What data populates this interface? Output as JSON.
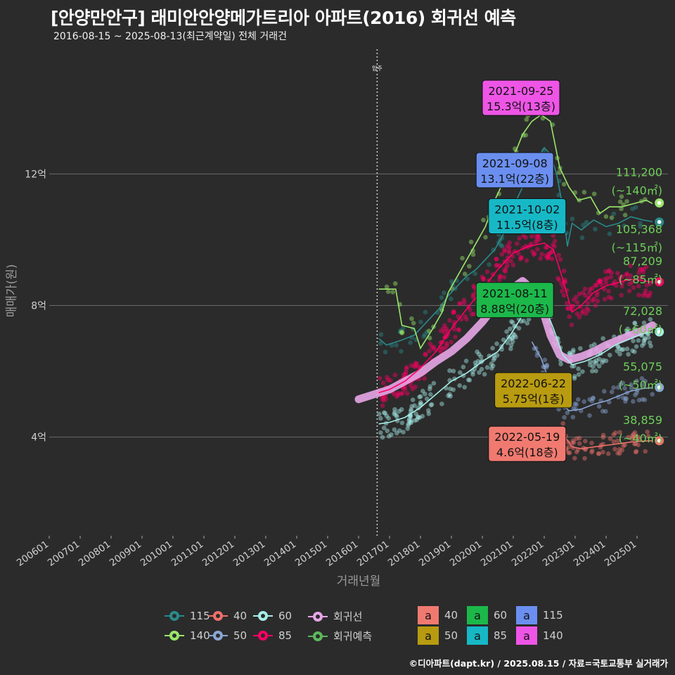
{
  "header": {
    "title": "[안양만안구] 래미안안양메가트리아 아파트(2016) 회귀선 예측",
    "subtitle": "2016-08-15 ~ 2025-08-13(최근계약일) 전체 거래건",
    "credit": "©디아파트(dapt.kr) / 2025.08.15 / 자료=국토교통부 실거래가"
  },
  "chart_data": {
    "type": "scatter",
    "title": "[안양만안구] 래미안안양메가트리아 아파트(2016) 회귀선 예측",
    "xlabel": "거래년월",
    "ylabel": "매매가(원)",
    "xlim": [
      2006.0,
      2026.0
    ],
    "ylim": [
      1.0,
      15.9
    ],
    "y_ticks": [
      {
        "value": 4,
        "label": "4억"
      },
      {
        "value": 8,
        "label": "8억"
      },
      {
        "value": 12,
        "label": "12억"
      }
    ],
    "x_ticks": [
      "200601",
      "200701",
      "200801",
      "200901",
      "201001",
      "201101",
      "201201",
      "201301",
      "201401",
      "201501",
      "201601",
      "201701",
      "201801",
      "201901",
      "202001",
      "202101",
      "202201",
      "202301",
      "202401",
      "202501"
    ],
    "move_in": {
      "x": 2016.6,
      "label": "입주"
    },
    "series": [
      {
        "name": "115",
        "color": "#2a8a8a",
        "points": [
          [
            2016.65,
            7
          ],
          [
            2016.9,
            6.8
          ],
          [
            2017.4,
            6.95
          ],
          [
            2017.8,
            7.1
          ],
          [
            2018.2,
            7.5
          ],
          [
            2018.6,
            7.9
          ],
          [
            2018.9,
            8.3
          ],
          [
            2019.2,
            8.6
          ],
          [
            2019.5,
            8.9
          ],
          [
            2019.8,
            9.1
          ],
          [
            2020.1,
            9.4
          ],
          [
            2020.4,
            9.7
          ],
          [
            2020.7,
            10.2
          ],
          [
            2021.0,
            11.0
          ],
          [
            2021.3,
            11.6
          ],
          [
            2021.6,
            12.2
          ],
          [
            2021.8,
            12.5
          ],
          [
            2022.0,
            12.8
          ],
          [
            2022.2,
            12.6
          ],
          [
            2022.4,
            12.0
          ],
          [
            2022.6,
            11.0
          ],
          [
            2022.75,
            9.8
          ],
          [
            2022.9,
            10.5
          ],
          [
            2023.2,
            10.3
          ],
          [
            2023.6,
            10.6
          ],
          [
            2024.0,
            10.4
          ],
          [
            2024.4,
            10.5
          ],
          [
            2024.8,
            10.7
          ],
          [
            2025.2,
            10.6
          ],
          [
            2025.5,
            10.55
          ]
        ],
        "endpoint": 10.54,
        "end_label": "105,368",
        "end_area": "(~115㎡)"
      },
      {
        "name": "140",
        "color": "#9ae66b",
        "points": [
          [
            2016.65,
            8.5
          ],
          [
            2017.2,
            8.5
          ],
          [
            2017.4,
            7.4
          ],
          [
            2017.8,
            7.3
          ],
          [
            2018.0,
            6.7
          ],
          [
            2018.4,
            7.3
          ],
          [
            2018.7,
            7.8
          ],
          [
            2018.9,
            8.4
          ],
          [
            2019.2,
            8.9
          ],
          [
            2019.5,
            9.4
          ],
          [
            2019.8,
            9.9
          ],
          [
            2020.1,
            10.4
          ],
          [
            2020.4,
            11.2
          ],
          [
            2020.7,
            11.8
          ],
          [
            2021.0,
            12.5
          ],
          [
            2021.3,
            13.2
          ],
          [
            2021.6,
            13.6
          ],
          [
            2021.9,
            13.8
          ],
          [
            2022.2,
            13.6
          ],
          [
            2022.5,
            12.2
          ],
          [
            2022.8,
            11.6
          ],
          [
            2023.1,
            11.2
          ],
          [
            2023.5,
            11.3
          ],
          [
            2023.8,
            10.8
          ],
          [
            2024.1,
            11.0
          ],
          [
            2024.5,
            11.0
          ],
          [
            2024.9,
            11.1
          ],
          [
            2025.3,
            11.2
          ],
          [
            2025.5,
            11.1
          ]
        ],
        "endpoint": 11.12,
        "end_label": "111,200",
        "end_area": "(~140㎡)"
      },
      {
        "name": "85",
        "color": "#ff0066",
        "points": [
          [
            2016.65,
            5.35
          ],
          [
            2017.0,
            5.45
          ],
          [
            2017.5,
            5.7
          ],
          [
            2018.0,
            6.1
          ],
          [
            2018.5,
            6.6
          ],
          [
            2019.0,
            7.3
          ],
          [
            2019.5,
            7.9
          ],
          [
            2020.0,
            8.5
          ],
          [
            2020.5,
            9.1
          ],
          [
            2021.0,
            9.6
          ],
          [
            2021.5,
            9.8
          ],
          [
            2022.0,
            9.9
          ],
          [
            2022.3,
            9.7
          ],
          [
            2022.6,
            8.8
          ],
          [
            2022.9,
            7.8
          ],
          [
            2023.2,
            8.0
          ],
          [
            2023.6,
            8.4
          ],
          [
            2024.0,
            8.6
          ],
          [
            2024.4,
            8.7
          ],
          [
            2024.8,
            8.8
          ],
          [
            2025.2,
            8.75
          ],
          [
            2025.5,
            8.72
          ]
        ],
        "endpoint": 8.72,
        "end_label": "87,209",
        "end_area": "(~85㎡)"
      },
      {
        "name": "60",
        "color": "#a6eee8",
        "points": [
          [
            2016.65,
            4.4
          ],
          [
            2017.0,
            4.45
          ],
          [
            2017.5,
            4.6
          ],
          [
            2018.0,
            4.9
          ],
          [
            2018.5,
            5.3
          ],
          [
            2019.0,
            5.7
          ],
          [
            2019.5,
            5.95
          ],
          [
            2020.0,
            6.3
          ],
          [
            2020.5,
            6.6
          ],
          [
            2020.9,
            7.1
          ],
          [
            2021.3,
            7.7
          ],
          [
            2021.7,
            8.2
          ],
          [
            2022.0,
            8.0
          ],
          [
            2022.3,
            7.3
          ],
          [
            2022.6,
            6.5
          ],
          [
            2022.9,
            6.2
          ],
          [
            2023.3,
            6.3
          ],
          [
            2023.8,
            6.5
          ],
          [
            2024.3,
            6.8
          ],
          [
            2024.8,
            7.0
          ],
          [
            2025.2,
            7.15
          ],
          [
            2025.5,
            7.2
          ]
        ],
        "endpoint": 7.2,
        "end_label": "72,028",
        "end_area": "(~60㎡)"
      },
      {
        "name": "50",
        "color": "#8aa6d4",
        "points": [
          [
            2021.6,
            6.9
          ],
          [
            2021.9,
            6.4
          ],
          [
            2022.2,
            5.6
          ],
          [
            2022.5,
            5.1
          ],
          [
            2022.8,
            4.8
          ],
          [
            2023.2,
            4.85
          ],
          [
            2023.6,
            5.0
          ],
          [
            2024.0,
            5.1
          ],
          [
            2024.4,
            5.25
          ],
          [
            2024.8,
            5.4
          ],
          [
            2025.2,
            5.48
          ],
          [
            2025.5,
            5.5
          ]
        ],
        "endpoint": 5.51,
        "end_label": "55,075",
        "end_area": "(~50㎡)"
      },
      {
        "name": "40",
        "color": "#f0706a",
        "points": [
          [
            2022.3,
            4.3
          ],
          [
            2022.6,
            4.1
          ],
          [
            2022.9,
            3.7
          ],
          [
            2023.2,
            3.65
          ],
          [
            2023.6,
            3.7
          ],
          [
            2024.0,
            3.75
          ],
          [
            2024.4,
            3.8
          ],
          [
            2024.8,
            3.85
          ],
          [
            2025.2,
            3.88
          ],
          [
            2025.5,
            3.89
          ]
        ],
        "endpoint": 3.89,
        "end_label": "38,859",
        "end_area": "(~40㎡)"
      }
    ],
    "regression": {
      "name": "회귀선",
      "color": "#e7a6e7",
      "points": [
        [
          2016.0,
          5.15
        ],
        [
          2016.5,
          5.3
        ],
        [
          2017.0,
          5.45
        ],
        [
          2017.5,
          5.7
        ],
        [
          2018.0,
          5.95
        ],
        [
          2018.5,
          6.3
        ],
        [
          2019.0,
          6.6
        ],
        [
          2019.5,
          7.0
        ],
        [
          2020.0,
          7.5
        ],
        [
          2020.5,
          8.1
        ],
        [
          2021.0,
          8.55
        ],
        [
          2021.3,
          8.75
        ],
        [
          2021.6,
          8.5
        ],
        [
          2021.9,
          8.0
        ],
        [
          2022.2,
          7.1
        ],
        [
          2022.5,
          6.5
        ],
        [
          2022.8,
          6.35
        ],
        [
          2023.2,
          6.45
        ],
        [
          2023.6,
          6.6
        ],
        [
          2024.0,
          6.8
        ],
        [
          2024.4,
          6.95
        ],
        [
          2024.8,
          7.1
        ],
        [
          2025.2,
          7.25
        ],
        [
          2025.5,
          7.4
        ]
      ]
    },
    "forecast": {
      "name": "회귀예측",
      "color": "#5cb85c"
    },
    "annotations": [
      {
        "date": "2021-09-25",
        "price": "15.3억(13층)",
        "area": "140",
        "color": "#ee55e6",
        "x": 2020.0,
        "y": 14.85
      },
      {
        "date": "2021-09-08",
        "price": "13.1억(22층)",
        "area": "115",
        "color": "#6b8ff0",
        "x": 2019.8,
        "y": 12.65
      },
      {
        "date": "2021-10-02",
        "price": "11.5억(8층)",
        "area": "85",
        "color": "#17b8c6",
        "x": 2020.2,
        "y": 11.25
      },
      {
        "date": "2021-08-11",
        "price": "8.88억(20층)",
        "area": "60",
        "color": "#1cb84a",
        "x": 2019.8,
        "y": 8.7
      },
      {
        "date": "2022-06-22",
        "price": "5.75억(1층)",
        "area": "50",
        "color": "#b89b10",
        "x": 2020.4,
        "y": 5.96
      },
      {
        "date": "2022-05-19",
        "price": "4.6억(18층)",
        "area": "40",
        "color": "#f07a70",
        "x": 2020.2,
        "y": 4.33
      }
    ]
  },
  "legend": {
    "lines": [
      {
        "name": "115",
        "color": "#2a8a8a"
      },
      {
        "name": "40",
        "color": "#f0706a"
      },
      {
        "name": "60",
        "color": "#a6eee8"
      },
      {
        "name": "회귀선",
        "color": "#e7a6e7"
      },
      {
        "name": "140",
        "color": "#9ae66b"
      },
      {
        "name": "50",
        "color": "#8aa6d4"
      },
      {
        "name": "85",
        "color": "#ff0066"
      },
      {
        "name": "회귀예측",
        "color": "#5cb85c"
      }
    ],
    "boxes": [
      {
        "name": "40",
        "color": "#f07a70",
        "glyph": "a"
      },
      {
        "name": "60",
        "color": "#1cb84a",
        "glyph": "a"
      },
      {
        "name": "115",
        "color": "#6b8ff0",
        "glyph": "a"
      },
      {
        "name": "50",
        "color": "#b89b10",
        "glyph": "a"
      },
      {
        "name": "85",
        "color": "#17b8c6",
        "glyph": "a"
      },
      {
        "name": "140",
        "color": "#ee55e6",
        "glyph": "a"
      }
    ]
  }
}
